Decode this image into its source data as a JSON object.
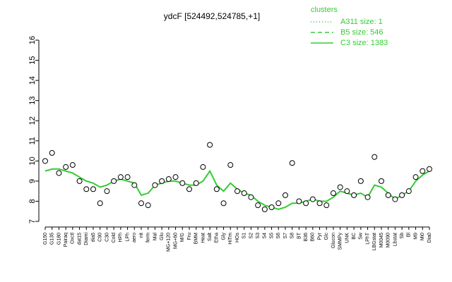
{
  "chart_data": {
    "type": "line",
    "title": "ydcF [524492,524785,+1]",
    "categories": [
      "G150",
      "G135",
      "G180",
      "Pairaq",
      "Oxctl",
      "dat15",
      "Diami",
      "dia5",
      "C90",
      "C30",
      "Cold",
      "HPh",
      "LPh",
      "aero",
      "nit",
      "ferm",
      "Mal",
      "Glu",
      "MG+120",
      "MG+60",
      "M/G",
      "Fru",
      "BMM",
      "Heat",
      "Salt",
      "Etha",
      "Gly",
      "HiTm",
      "HOs",
      "S1",
      "S2",
      "S3",
      "S4",
      "S5",
      "S6",
      "S7",
      "S8",
      "BT",
      "B36",
      "B60",
      "Pyr",
      "Glc",
      "Glucon",
      "SMMPy",
      "UNK",
      "BC",
      "Sw",
      "LPhT",
      "LBGstat",
      "M0045",
      "M0090",
      "Lbstat",
      "Sb",
      "Bl",
      "M9",
      "Mi0",
      "Dia0"
    ],
    "points": [
      10.0,
      10.4,
      9.4,
      9.7,
      9.8,
      9.0,
      8.6,
      8.6,
      7.9,
      8.5,
      9.0,
      9.2,
      9.2,
      8.8,
      7.9,
      7.8,
      8.8,
      9.0,
      9.1,
      9.2,
      8.9,
      8.6,
      8.9,
      9.7,
      10.8,
      8.6,
      7.9,
      9.8,
      8.5,
      8.4,
      8.2,
      7.8,
      7.6,
      7.7,
      7.9,
      8.3,
      9.9,
      8.0,
      7.9,
      8.1,
      7.9,
      7.8,
      8.4,
      8.7,
      8.5,
      8.3,
      9.0,
      8.2,
      10.2,
      9.0,
      8.3,
      8.1,
      8.3,
      8.5,
      9.2,
      9.5,
      9.6
    ],
    "series": [
      {
        "name": "C3 size: 1383",
        "color": "#33cc33",
        "values": [
          9.5,
          9.6,
          9.6,
          9.5,
          9.4,
          9.2,
          9.0,
          8.9,
          8.7,
          8.8,
          9.0,
          9.1,
          9.0,
          8.9,
          8.3,
          8.4,
          8.8,
          8.9,
          9.0,
          9.0,
          8.9,
          8.8,
          8.8,
          9.0,
          9.5,
          8.8,
          8.5,
          8.9,
          8.6,
          8.4,
          8.3,
          8.0,
          7.8,
          7.7,
          7.6,
          7.7,
          7.9,
          7.9,
          8.0,
          8.1,
          8.0,
          8.0,
          8.2,
          8.5,
          8.4,
          8.3,
          8.4,
          8.2,
          8.8,
          8.7,
          8.4,
          8.1,
          8.3,
          8.5,
          9.0,
          9.3,
          9.5
        ]
      }
    ],
    "legend": {
      "title": "clusters",
      "entries": [
        {
          "name": "A311 size: 1",
          "dash": "1,3"
        },
        {
          "name": "B5 size: 546",
          "dash": "6,4"
        },
        {
          "name": "C3 size: 1383",
          "dash": "none"
        }
      ]
    },
    "ylim": [
      7,
      16
    ],
    "yticks": [
      7,
      8,
      9,
      10,
      11,
      12,
      13,
      14,
      15,
      16
    ]
  }
}
